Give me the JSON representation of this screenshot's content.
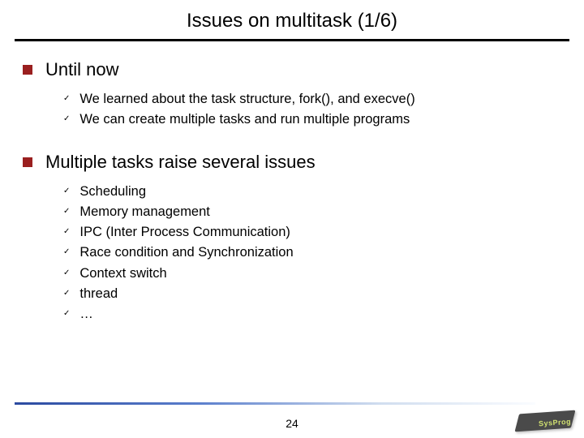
{
  "title": "Issues on multitask (1/6)",
  "sections": [
    {
      "heading": "Until now",
      "items": [
        "We learned about the task structure, fork(), and execve()",
        "We can create multiple tasks and run multiple programs"
      ]
    },
    {
      "heading": "Multiple tasks raise several issues",
      "items": [
        "Scheduling",
        "Memory management",
        "IPC (Inter Process Communication)",
        "Race condition and Synchronization",
        "Context switch",
        "thread",
        "…"
      ]
    }
  ],
  "page_number": "24",
  "logo_text": "SysProg",
  "colors": {
    "square_bullet": "#9a1f1f",
    "gradient_start": "#2b4aa0",
    "gradient_end": "#fafcff",
    "background": "#ffffff"
  }
}
